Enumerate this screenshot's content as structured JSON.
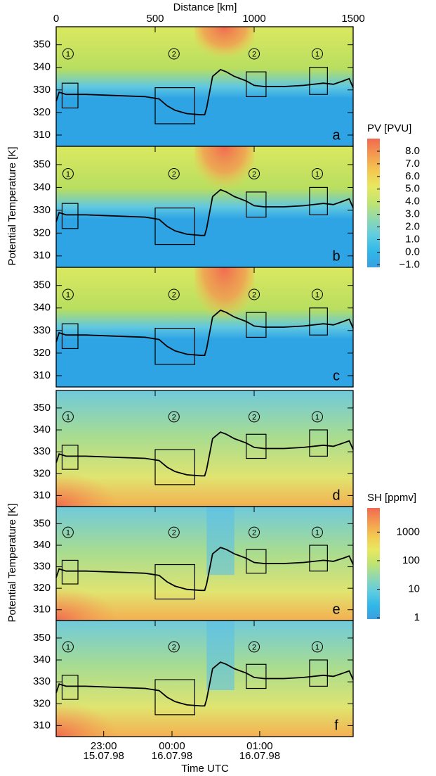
{
  "chart_data": {
    "type": "line",
    "x_label_top": "Distance [km]",
    "xlim": [
      0,
      1500
    ],
    "xticks": [
      0,
      500,
      1000,
      1500
    ],
    "ylim": [
      305,
      358
    ],
    "yticks": [
      310,
      320,
      330,
      340,
      350
    ],
    "y_label": "Potential Temperature [K]",
    "x_label_bottom": "Time UTC",
    "time_ticks": [
      {
        "value": 240,
        "label": "23:00",
        "date": "15.07.98"
      },
      {
        "value": 585,
        "label": "00:00",
        "date": "16.07.98"
      },
      {
        "value": 1028,
        "label": "01:00",
        "date": "16.07.98"
      }
    ],
    "panels": [
      "a",
      "b",
      "c",
      "d",
      "e",
      "f"
    ],
    "flight": {
      "color": "#000000",
      "x": [
        0,
        15,
        50,
        150,
        300,
        450,
        520,
        560,
        600,
        660,
        730,
        750,
        760,
        790,
        810,
        830,
        860,
        900,
        960,
        1000,
        1050,
        1150,
        1250,
        1350,
        1400,
        1450,
        1480,
        1500
      ],
      "values": [
        325,
        329,
        328,
        328,
        327.5,
        327,
        326,
        323,
        321,
        319.5,
        319,
        319,
        322,
        336,
        337.5,
        339,
        338,
        336,
        334,
        332,
        331.5,
        331.5,
        332,
        333,
        332.5,
        334,
        335,
        331
      ]
    },
    "boxes": [
      {
        "x": [
          30,
          110
        ],
        "y": [
          322,
          333
        ]
      },
      {
        "x": [
          500,
          700
        ],
        "y": [
          315,
          331
        ]
      },
      {
        "x": [
          960,
          1060
        ],
        "y": [
          327,
          338
        ]
      },
      {
        "x": [
          1280,
          1370
        ],
        "y": [
          328,
          340
        ]
      }
    ],
    "regions": [
      {
        "label": "1",
        "x": 60
      },
      {
        "label": "2",
        "x": 595
      },
      {
        "label": "2",
        "x": 1000
      },
      {
        "label": "1",
        "x": 1319
      }
    ],
    "colorbars": [
      {
        "title": "PV [PVU]",
        "lim": [
          -1.2,
          9
        ],
        "log": false,
        "colors": [
          "#3a9fe0",
          "#30b8e8",
          "#60cce0",
          "#8fd8b0",
          "#c0e470",
          "#e8e860",
          "#f4c850",
          "#f49a50",
          "#f06a50"
        ],
        "ticks": [
          {
            "value": -1,
            "label": "−1.0"
          },
          {
            "value": 0,
            "label": "0.0"
          },
          {
            "value": 1,
            "label": "1.0"
          },
          {
            "value": 2,
            "label": "2.0"
          },
          {
            "value": 3,
            "label": "3.0"
          },
          {
            "value": 4,
            "label": "4.0"
          },
          {
            "value": 5,
            "label": "5.0"
          },
          {
            "value": 6,
            "label": "6.0"
          },
          {
            "value": 7,
            "label": "7.0"
          },
          {
            "value": 8,
            "label": "8.0"
          }
        ]
      },
      {
        "title": "SH [ppmv]",
        "lim": [
          0.9,
          7000
        ],
        "log": true,
        "colors": [
          "#3a9fe0",
          "#30b8e8",
          "#60cce0",
          "#8fd8b0",
          "#c0e470",
          "#e8e860",
          "#f4c850",
          "#f49a50",
          "#f06a50"
        ],
        "ticks": [
          1,
          10,
          100,
          1000
        ]
      }
    ]
  }
}
